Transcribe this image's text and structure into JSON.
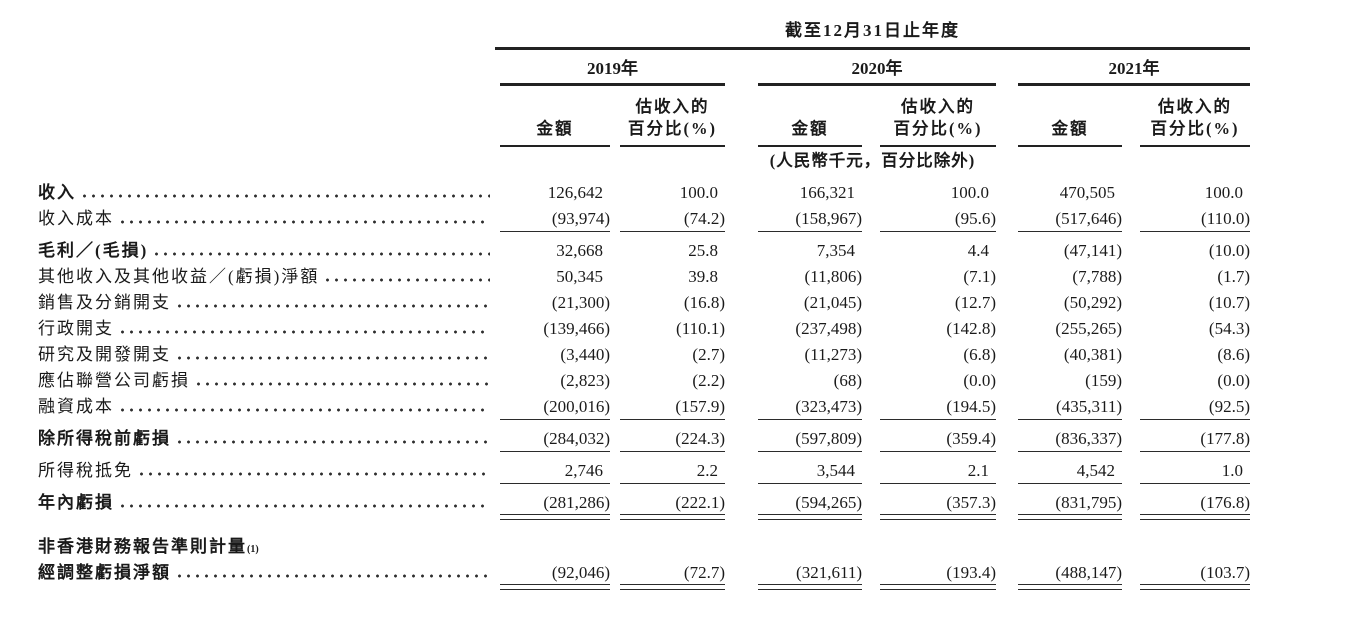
{
  "document": {
    "period_header": "截至12月31日止年度",
    "unit_note": "(人民幣千元，百分比除外)",
    "years": [
      "2019年",
      "2020年",
      "2021年"
    ],
    "column_headers": {
      "amount": "金額",
      "pct_line1": "估收入的",
      "pct_line2": "百分比(%)"
    },
    "footnote_marker": "(1)",
    "rows": [
      {
        "label": "收入",
        "v": [
          "126,642",
          "100.0",
          "166,321",
          "100.0",
          "470,505",
          "100.0"
        ]
      },
      {
        "label": "收入成本",
        "v": [
          "(93,974)",
          "(74.2)",
          "(158,967)",
          "(95.6)",
          "(517,646)",
          "(110.0)"
        ]
      },
      {
        "label": "毛利／(毛損)",
        "v": [
          "32,668",
          "25.8",
          "7,354",
          "4.4",
          "(47,141)",
          "(10.0)"
        ]
      },
      {
        "label": "其他收入及其他收益／(虧損)淨額",
        "v": [
          "50,345",
          "39.8",
          "(11,806)",
          "(7.1)",
          "(7,788)",
          "(1.7)"
        ]
      },
      {
        "label": "銷售及分銷開支",
        "v": [
          "(21,300)",
          "(16.8)",
          "(21,045)",
          "(12.7)",
          "(50,292)",
          "(10.7)"
        ]
      },
      {
        "label": "行政開支",
        "v": [
          "(139,466)",
          "(110.1)",
          "(237,498)",
          "(142.8)",
          "(255,265)",
          "(54.3)"
        ]
      },
      {
        "label": "研究及開發開支",
        "v": [
          "(3,440)",
          "(2.7)",
          "(11,273)",
          "(6.8)",
          "(40,381)",
          "(8.6)"
        ]
      },
      {
        "label": "應佔聯營公司虧損",
        "v": [
          "(2,823)",
          "(2.2)",
          "(68)",
          "(0.0)",
          "(159)",
          "(0.0)"
        ]
      },
      {
        "label": "融資成本",
        "v": [
          "(200,016)",
          "(157.9)",
          "(323,473)",
          "(194.5)",
          "(435,311)",
          "(92.5)"
        ]
      },
      {
        "label": "除所得稅前虧損",
        "v": [
          "(284,032)",
          "(224.3)",
          "(597,809)",
          "(359.4)",
          "(836,337)",
          "(177.8)"
        ]
      },
      {
        "label": "所得稅抵免",
        "v": [
          "2,746",
          "2.2",
          "3,544",
          "2.1",
          "4,542",
          "1.0"
        ]
      },
      {
        "label": "年內虧損",
        "v": [
          "(281,286)",
          "(222.1)",
          "(594,265)",
          "(357.3)",
          "(831,795)",
          "(176.8)"
        ]
      },
      {
        "label": "非香港財務報告準則計量"
      },
      {
        "label": "經調整虧損淨額",
        "v": [
          "(92,046)",
          "(72.7)",
          "(321,611)",
          "(193.4)",
          "(488,147)",
          "(103.7)"
        ]
      }
    ]
  }
}
